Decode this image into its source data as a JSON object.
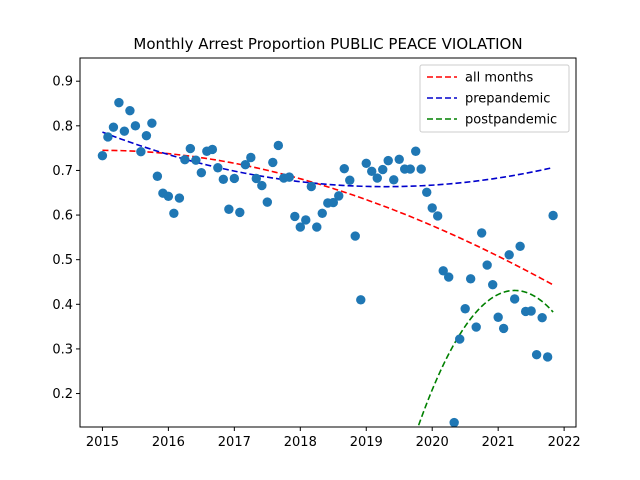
{
  "chart_data": {
    "type": "scatter",
    "title": "Monthly Arrest Proportion PUBLIC PEACE VIOLATION",
    "xlabel": "",
    "ylabel": "",
    "xlim": [
      2014.66,
      2022.18
    ],
    "ylim": [
      0.125,
      0.952
    ],
    "x_ticks": [
      2015,
      2016,
      2017,
      2018,
      2019,
      2020,
      2021,
      2022
    ],
    "y_ticks": [
      0.2,
      0.3,
      0.4,
      0.5,
      0.6,
      0.7,
      0.8,
      0.9
    ],
    "grid": false,
    "legend_position": "top-right",
    "colors": {
      "points": "#1f77b4",
      "all_months": "#ff0000",
      "prepandemic": "#0000cc",
      "postpandemic": "#008000"
    },
    "points": {
      "x": [
        2015.0,
        2015.083,
        2015.167,
        2015.25,
        2015.333,
        2015.417,
        2015.5,
        2015.583,
        2015.667,
        2015.75,
        2015.833,
        2015.917,
        2016.0,
        2016.083,
        2016.167,
        2016.25,
        2016.333,
        2016.417,
        2016.5,
        2016.583,
        2016.667,
        2016.75,
        2016.833,
        2016.917,
        2017.0,
        2017.083,
        2017.167,
        2017.25,
        2017.333,
        2017.417,
        2017.5,
        2017.583,
        2017.667,
        2017.75,
        2017.833,
        2017.917,
        2018.0,
        2018.083,
        2018.167,
        2018.25,
        2018.333,
        2018.417,
        2018.5,
        2018.583,
        2018.667,
        2018.75,
        2018.833,
        2018.917,
        2019.0,
        2019.083,
        2019.167,
        2019.25,
        2019.333,
        2019.417,
        2019.5,
        2019.583,
        2019.667,
        2019.75,
        2019.833,
        2019.917,
        2020.0,
        2020.083,
        2020.167,
        2020.25,
        2020.333,
        2020.417,
        2020.5,
        2020.583,
        2020.667,
        2020.75,
        2020.833,
        2020.917,
        2021.0,
        2021.083,
        2021.167,
        2021.25,
        2021.333,
        2021.417,
        2021.5,
        2021.583,
        2021.667,
        2021.75,
        2021.833
      ],
      "y": [
        0.733,
        0.775,
        0.797,
        0.852,
        0.788,
        0.834,
        0.8,
        0.742,
        0.778,
        0.806,
        0.687,
        0.649,
        0.642,
        0.604,
        0.638,
        0.724,
        0.749,
        0.723,
        0.695,
        0.743,
        0.747,
        0.706,
        0.68,
        0.613,
        0.682,
        0.606,
        0.713,
        0.729,
        0.682,
        0.666,
        0.629,
        0.718,
        0.756,
        0.683,
        0.685,
        0.597,
        0.573,
        0.589,
        0.664,
        0.573,
        0.604,
        0.627,
        0.628,
        0.643,
        0.704,
        0.678,
        0.553,
        0.41,
        0.716,
        0.698,
        0.683,
        0.702,
        0.722,
        0.679,
        0.725,
        0.703,
        0.703,
        0.743,
        0.703,
        0.651,
        0.616,
        0.598,
        0.475,
        0.461,
        0.135,
        0.322,
        0.39,
        0.457,
        0.349,
        0.56,
        0.488,
        0.444,
        0.371,
        0.346,
        0.511,
        0.412,
        0.53,
        0.384,
        0.385,
        0.287,
        0.37,
        0.282,
        0.599
      ]
    },
    "series": [
      {
        "name": "all months",
        "style": "dashed",
        "x_range": [
          2015.0,
          2021.833
        ],
        "coeffs_t": [
          0.745,
          0.0,
          -0.00755,
          0.00016
        ]
      },
      {
        "name": "prepandemic",
        "style": "dashed",
        "x_range": [
          2015.0,
          2021.833
        ],
        "coeffs_t": [
          0.786,
          -0.057,
          0.00664,
          0.0
        ]
      },
      {
        "name": "postpandemic",
        "style": "dashed",
        "x_range": [
          2019.5,
          2021.833
        ],
        "coeffs_t": [
          0.431,
          0.0,
          -0.1425,
          0.0
        ],
        "t_center": 2021.25
      }
    ]
  }
}
